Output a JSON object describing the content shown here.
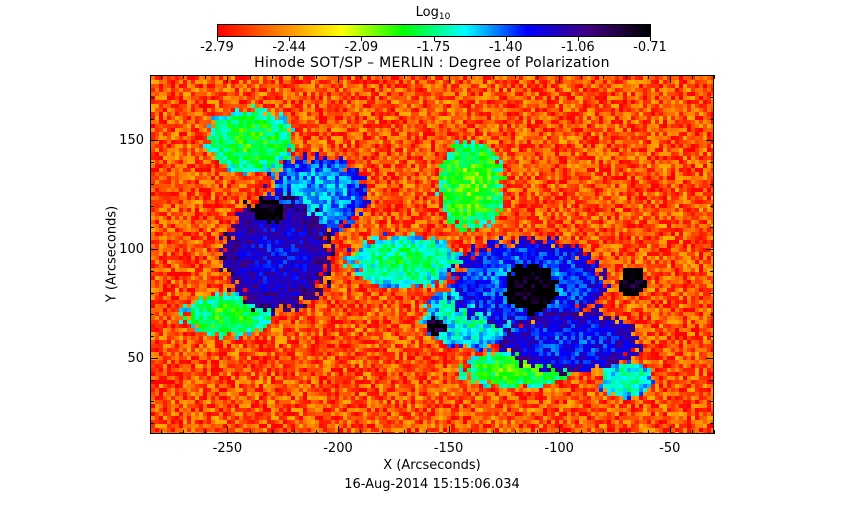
{
  "colorbar": {
    "label_main": "Log",
    "label_sub": "10",
    "ticks": [
      "-2.79",
      "-2.44",
      "-2.09",
      "-1.75",
      "-1.40",
      "-1.06",
      "-0.71"
    ],
    "colors": [
      "#ff0000",
      "#ff8000",
      "#ffff00",
      "#00ff00",
      "#00ffff",
      "#0000ff",
      "#400080",
      "#000000"
    ]
  },
  "chart_data": {
    "type": "heatmap",
    "title": "Hinode SOT/SP – MERLIN : Degree of Polarization",
    "xlabel": "X (Arcseconds)",
    "ylabel": "Y (Arcseconds)",
    "xlim": [
      -285,
      -30
    ],
    "ylim": [
      15,
      180
    ],
    "x_ticks": [
      -250,
      -200,
      -150,
      -100,
      -50
    ],
    "y_ticks": [
      50,
      100,
      150
    ],
    "color_scale": {
      "name": "Log10",
      "min": -2.79,
      "max": -0.71
    },
    "background_value": -2.6,
    "regions": [
      {
        "x": -232,
        "y": 118,
        "rx": 7,
        "ry": 6,
        "value": -0.8
      },
      {
        "x": -113,
        "y": 82,
        "rx": 12,
        "ry": 11,
        "value": -0.78
      },
      {
        "x": -67,
        "y": 85,
        "rx": 6,
        "ry": 7,
        "value": -0.8
      },
      {
        "x": -156,
        "y": 65,
        "rx": 5,
        "ry": 4,
        "value": -0.85
      },
      {
        "x": -228,
        "y": 98,
        "rx": 24,
        "ry": 26,
        "value": -1.25
      },
      {
        "x": -210,
        "y": 125,
        "rx": 22,
        "ry": 18,
        "value": -1.55
      },
      {
        "x": -115,
        "y": 85,
        "rx": 34,
        "ry": 20,
        "value": -1.45
      },
      {
        "x": -95,
        "y": 58,
        "rx": 30,
        "ry": 14,
        "value": -1.35
      },
      {
        "x": -140,
        "y": 70,
        "rx": 22,
        "ry": 15,
        "value": -1.7
      },
      {
        "x": -170,
        "y": 95,
        "rx": 25,
        "ry": 12,
        "value": -1.8
      },
      {
        "x": -240,
        "y": 150,
        "rx": 20,
        "ry": 15,
        "value": -1.9
      },
      {
        "x": -250,
        "y": 70,
        "rx": 20,
        "ry": 10,
        "value": -1.9
      },
      {
        "x": -120,
        "y": 45,
        "rx": 25,
        "ry": 8,
        "value": -1.95
      },
      {
        "x": -140,
        "y": 130,
        "rx": 15,
        "ry": 20,
        "value": -2.0
      },
      {
        "x": -70,
        "y": 40,
        "rx": 12,
        "ry": 8,
        "value": -1.75
      }
    ]
  },
  "timestamp": "16-Aug-2014 15:15:06.034"
}
